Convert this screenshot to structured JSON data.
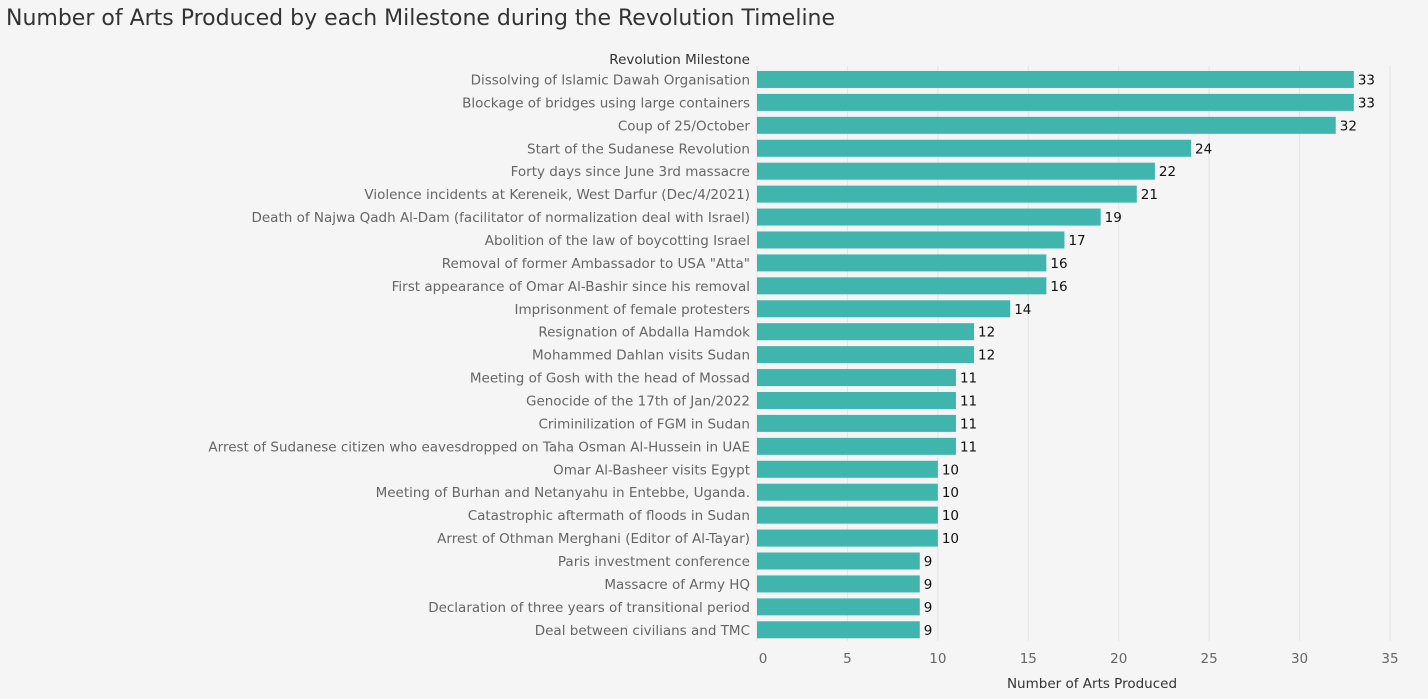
{
  "chart_data": {
    "type": "bar",
    "orientation": "horizontal",
    "title": "Number of Arts Produced by each Milestone during the Revolution Timeline",
    "ylabel": "Revolution Milestone",
    "xlabel": "Number of Arts Produced",
    "xlim": [
      0,
      35
    ],
    "xticks": [
      0,
      5,
      10,
      15,
      20,
      25,
      30,
      35
    ],
    "grid": true,
    "bar_color": "#40b5ad",
    "categories": [
      "Dissolving of Islamic Dawah Organisation",
      "Blockage of bridges using large containers",
      "Coup of 25/October",
      "Start of the Sudanese Revolution",
      "Forty days since June 3rd massacre",
      "Violence incidents at Kereneik, West Darfur (Dec/4/2021)",
      "Death of Najwa Qadh Al-Dam (facilitator of normalization deal with Israel)",
      "Abolition of the law of boycotting Israel",
      "Removal of former Ambassador to USA \"Atta\"",
      "First appearance of Omar Al-Bashir since his removal",
      "Imprisonment of female protesters",
      "Resignation of Abdalla Hamdok",
      "Mohammed Dahlan visits Sudan",
      "Meeting of Gosh with the head of Mossad",
      "Genocide of the 17th of Jan/2022",
      "Criminilization of FGM in Sudan",
      "Arrest of Sudanese citizen who eavesdropped on Taha Osman Al-Hussein in UAE",
      "Omar Al-Basheer visits Egypt",
      "Meeting of Burhan and Netanyahu in Entebbe, Uganda.",
      "Catastrophic aftermath of floods in Sudan",
      "Arrest of Othman Merghani (Editor of Al-Tayar)",
      "Paris investment conference",
      "Massacre of Army HQ",
      "Declaration of three years of transitional period",
      "Deal between civilians and TMC"
    ],
    "values": [
      33,
      33,
      32,
      24,
      22,
      21,
      19,
      17,
      16,
      16,
      14,
      12,
      12,
      11,
      11,
      11,
      11,
      10,
      10,
      10,
      10,
      9,
      9,
      9,
      9
    ]
  }
}
